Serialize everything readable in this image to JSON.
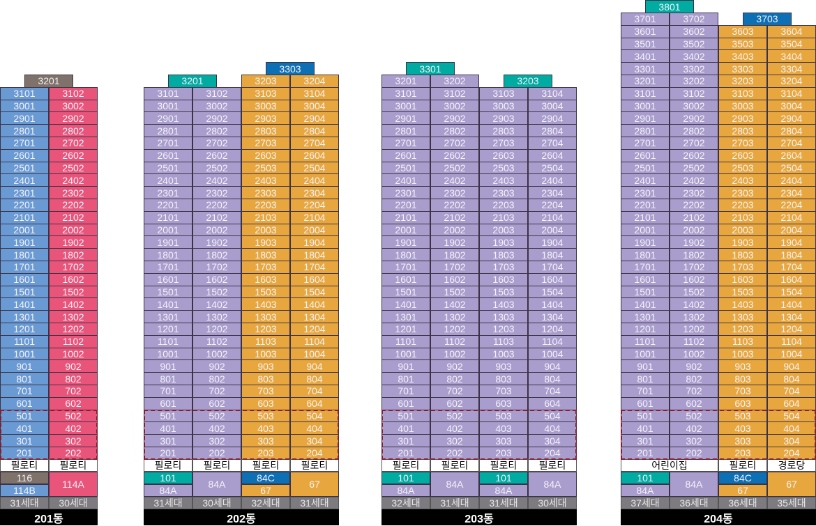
{
  "colors": {
    "blue": "#6a9ad4",
    "pink": "#e9547b",
    "purple": "#a99dcd",
    "orange": "#e8a73e",
    "teal": "#00aba2",
    "darkblue": "#0d70b5",
    "brown": "#7f726a"
  },
  "buildings": [
    {
      "name": "201동",
      "columns": [
        {
          "suffix": "01",
          "floors": [
            2,
            31
          ],
          "color": "blue",
          "pilotis": "필로티",
          "types": [
            {
              "label": "116",
              "color": "brown"
            },
            {
              "label": "114B",
              "color": "blue"
            }
          ],
          "households": "31세대"
        },
        {
          "suffix": "02",
          "floors": [
            2,
            31
          ],
          "color": "pink",
          "pilotis": "필로티",
          "types": [
            {
              "label": "114A",
              "color": "pink"
            }
          ],
          "households": "30세대"
        }
      ],
      "specials": [
        {
          "label": "3201",
          "floor": 32,
          "color": "brown",
          "above_columns": [
            0,
            1
          ]
        }
      ]
    },
    {
      "name": "202동",
      "columns": [
        {
          "suffix": "01",
          "floors": [
            2,
            31
          ],
          "color": "purple",
          "pilotis": "필로티",
          "types": [
            {
              "label": "101",
              "color": "teal"
            },
            {
              "label": "84A",
              "color": "purple"
            }
          ],
          "households": "31세대"
        },
        {
          "suffix": "02",
          "floors": [
            2,
            31
          ],
          "color": "purple",
          "pilotis": "필로티",
          "types": [
            {
              "label": "84A",
              "color": "purple"
            }
          ],
          "households": "30세대"
        },
        {
          "suffix": "03",
          "floors": [
            2,
            32
          ],
          "color": "orange",
          "pilotis": "필로티",
          "types": [
            {
              "label": "84C",
              "color": "darkblue"
            },
            {
              "label": "67",
              "color": "orange"
            }
          ],
          "households": "32세대"
        },
        {
          "suffix": "04",
          "floors": [
            2,
            32
          ],
          "color": "orange",
          "pilotis": "필로티",
          "types": [
            {
              "label": "67",
              "color": "orange"
            }
          ],
          "households": "31세대"
        }
      ],
      "specials": [
        {
          "label": "3201",
          "floor": 32,
          "color": "teal",
          "above_columns": [
            0,
            1
          ]
        },
        {
          "label": "3303",
          "floor": 33,
          "color": "darkblue",
          "above_columns": [
            2,
            3
          ]
        }
      ]
    },
    {
      "name": "203동",
      "columns": [
        {
          "suffix": "01",
          "floors": [
            2,
            32
          ],
          "color": "purple",
          "pilotis": "필로티",
          "types": [
            {
              "label": "101",
              "color": "teal"
            },
            {
              "label": "84A",
              "color": "purple"
            }
          ],
          "households": "32세대"
        },
        {
          "suffix": "02",
          "floors": [
            2,
            32
          ],
          "color": "purple",
          "pilotis": "필로티",
          "types": [
            {
              "label": "84A",
              "color": "purple"
            }
          ],
          "households": "31세대"
        },
        {
          "suffix": "03",
          "floors": [
            2,
            31
          ],
          "color": "purple",
          "pilotis": "필로티",
          "types": [
            {
              "label": "101",
              "color": "teal"
            },
            {
              "label": "84A",
              "color": "purple"
            }
          ],
          "households": "31세대"
        },
        {
          "suffix": "04",
          "floors": [
            2,
            31
          ],
          "color": "purple",
          "pilotis": "필로티",
          "types": [
            {
              "label": "84A",
              "color": "purple"
            }
          ],
          "households": "30세대"
        }
      ],
      "specials": [
        {
          "label": "3301",
          "floor": 33,
          "color": "teal",
          "above_columns": [
            0,
            1
          ]
        },
        {
          "label": "3203",
          "floor": 32,
          "color": "teal",
          "above_columns": [
            2,
            3
          ]
        }
      ]
    },
    {
      "name": "204동",
      "columns": [
        {
          "suffix": "01",
          "floors": [
            2,
            37
          ],
          "color": "purple",
          "pilotis": "어린이집",
          "pilotis_span": 2,
          "types": [
            {
              "label": "101",
              "color": "teal"
            },
            {
              "label": "84A",
              "color": "purple"
            }
          ],
          "households": "37세대"
        },
        {
          "suffix": "02",
          "floors": [
            2,
            37
          ],
          "color": "purple",
          "pilotis": null,
          "types": [
            {
              "label": "84A",
              "color": "purple"
            }
          ],
          "households": "36세대"
        },
        {
          "suffix": "03",
          "floors": [
            2,
            36
          ],
          "color": "orange",
          "pilotis": "필로티",
          "types": [
            {
              "label": "84C",
              "color": "darkblue"
            },
            {
              "label": "67",
              "color": "orange"
            }
          ],
          "households": "36세대"
        },
        {
          "suffix": "04",
          "floors": [
            2,
            36
          ],
          "color": "orange",
          "pilotis": "경로당",
          "types": [
            {
              "label": "67",
              "color": "orange"
            }
          ],
          "households": "35세대"
        }
      ],
      "specials": [
        {
          "label": "3801",
          "floor": 38,
          "color": "teal",
          "above_columns": [
            0,
            1
          ]
        },
        {
          "label": "3703",
          "floor": 37,
          "color": "darkblue",
          "above_columns": [
            2,
            3
          ]
        }
      ]
    }
  ]
}
